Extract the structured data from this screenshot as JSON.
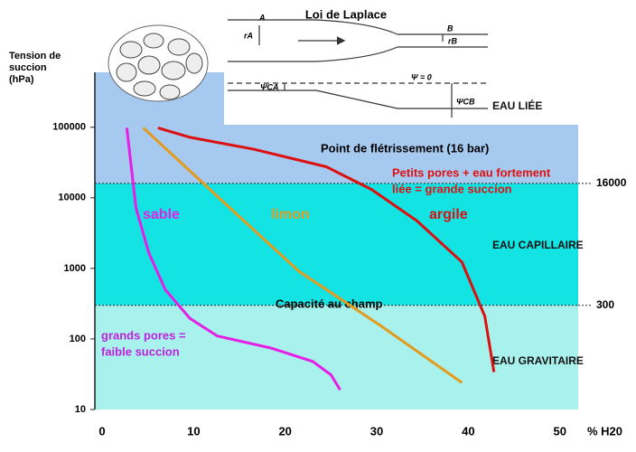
{
  "chart_data": {
    "type": "line",
    "y_label": [
      "Tension de",
      "succion",
      "(hPa)"
    ],
    "x_label": "% H20",
    "log_y": true,
    "xlim": [
      0,
      52
    ],
    "xticks": [
      0,
      10,
      20,
      30,
      40,
      50
    ],
    "ylim": [
      10,
      600000
    ],
    "yticks": [
      10,
      100,
      1000,
      10000,
      100000
    ],
    "zones": [
      {
        "label": "EAU LIÉE",
        "from": 16000,
        "to": 600000,
        "color": "#a6c9f0"
      },
      {
        "label": "EAU CAPILLAIRE",
        "from": 300,
        "to": 16000,
        "color": "#14e3e3"
      },
      {
        "label": "EAU GRAVITAIRE",
        "from": 10,
        "to": 300,
        "color": "#a8f1ec"
      }
    ],
    "thresholds": [
      {
        "value": 16000,
        "label": "16000",
        "note": "Point de flétrissement (16 bar)"
      },
      {
        "value": 300,
        "label": "300",
        "note": "Capacité au champ"
      }
    ],
    "annotations": [
      {
        "lines": [
          "Petits pores + eau fortement",
          "liée = grande succion"
        ],
        "color": "#e01010"
      },
      {
        "lines": [
          "grands pores =",
          "faible succion"
        ],
        "color": "#c020e0"
      }
    ],
    "series": [
      {
        "name": "sable",
        "color": "#e61ee6",
        "x": [
          2.7,
          3.7,
          5.1,
          6.9,
          9.6,
          12.6,
          18.5,
          23,
          25,
          26
        ],
        "values": [
          98000,
          7200,
          1660,
          500,
          195,
          110,
          74,
          48,
          31,
          19
        ]
      },
      {
        "name": "limon",
        "color": "#e49a1c",
        "x": [
          4.5,
          8.6,
          15,
          21.5,
          30.4,
          39.3
        ],
        "values": [
          98000,
          31600,
          5400,
          910,
          155,
          24
        ]
      },
      {
        "name": "argile",
        "color": "#dd1010",
        "x": [
          6.1,
          9.6,
          16.5,
          24.5,
          29.4,
          34.4,
          39.3,
          41.8,
          42.8
        ],
        "values": [
          98000,
          72000,
          49000,
          27500,
          13200,
          4700,
          1230,
          210,
          34
        ]
      }
    ],
    "laplace": {
      "title": "Loi de Laplace",
      "labels": [
        "A",
        "rA",
        "B",
        "rB",
        "Ψ = 0",
        "ΨCA",
        "ΨCB"
      ]
    }
  }
}
